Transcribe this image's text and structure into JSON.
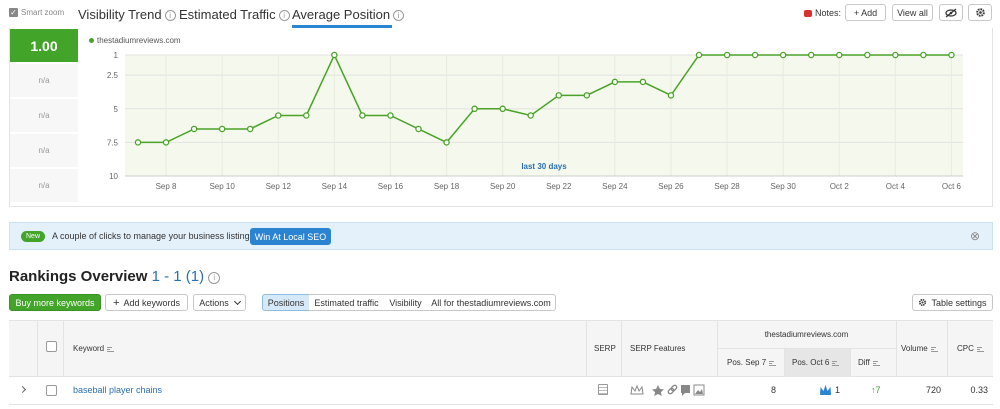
{
  "tabs": {
    "smart_zoom": "Smart zoom",
    "visibility_trend": "Visibility Trend",
    "estimated_traffic": "Estimated Traffic",
    "average_position": "Average Position",
    "info_glyph": "i"
  },
  "notes": {
    "label": "Notes:",
    "add": "+ Add",
    "view_all": "View all"
  },
  "chart_panel": {
    "current_value": "1.00",
    "na_values": [
      "n/a",
      "n/a",
      "n/a",
      "n/a"
    ],
    "legend_domain": "thestadiumreviews.com",
    "annotation": "last 30 days"
  },
  "chart_data": {
    "type": "line",
    "series": [
      {
        "name": "thestadiumreviews.com",
        "values": [
          7.5,
          7.5,
          6.5,
          6.5,
          6.5,
          5.5,
          5.5,
          1,
          5.5,
          5.5,
          6.5,
          7.5,
          5,
          5,
          5.5,
          4,
          4,
          3,
          3,
          4,
          1,
          1,
          1,
          1,
          1,
          1,
          1,
          1,
          1,
          1
        ]
      }
    ],
    "x_ticks": [
      "Sep 8",
      "Sep 10",
      "Sep 12",
      "Sep 14",
      "Sep 16",
      "Sep 18",
      "Sep 20",
      "Sep 22",
      "Sep 24",
      "Sep 26",
      "Sep 28",
      "Sep 30",
      "Oct 2",
      "Oct 4",
      "Oct 6"
    ],
    "y_ticks": [
      "1",
      "2.5",
      "5",
      "7.5",
      "10"
    ],
    "ylim": [
      1,
      10
    ],
    "y_inverted": true,
    "grid": true,
    "line_color": "#4aa328",
    "plot_bg": "#f5f8ec"
  },
  "promo": {
    "badge": "New",
    "text": "A couple of clicks to manage your business listings.",
    "cta": "Win At Local SEO",
    "close": "⊗"
  },
  "rankings": {
    "title": "Rankings Overview",
    "range": "1 - 1 (1)",
    "buy_more": "Buy more keywords",
    "add_keywords": "Add keywords",
    "actions": "Actions",
    "filters": [
      "Positions",
      "Estimated traffic",
      "Visibility",
      "All for thestadiumreviews.com"
    ],
    "table_settings": "Table settings"
  },
  "table": {
    "headers": {
      "keyword": "Keyword",
      "serp": "SERP",
      "serp_features": "SERP Features",
      "domain_group": "thestadiumreviews.com",
      "pos_sep7": "Pos. Sep 7",
      "pos_oct6": "Pos. Oct 6",
      "diff": "Diff",
      "volume": "Volume",
      "cpc": "CPC"
    },
    "rows": [
      {
        "keyword": "baseball player chains",
        "pos_sep7": "8",
        "pos_oct6": "1",
        "diff": "↑7",
        "volume": "720",
        "cpc": "0.33"
      }
    ]
  },
  "colors": {
    "green": "#42a529",
    "blue_link": "#2a6fb0",
    "accent_underline": "#2b84d2",
    "promo_bg": "#e4f1fb",
    "note_red": "#d9322c"
  }
}
